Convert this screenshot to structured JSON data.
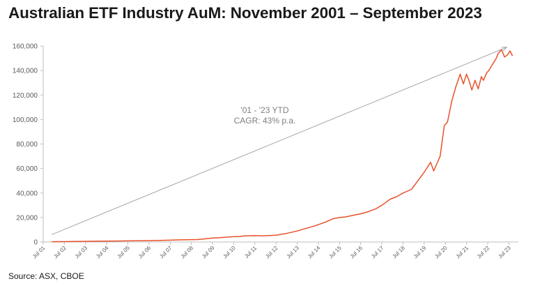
{
  "chart_data": {
    "type": "line",
    "title": "Australian ETF Industry AuM: November 2001 – September 2023",
    "source": "Source: ASX, CBOE",
    "annotation": [
      "'01 - '23 YTD",
      "CAGR: 43% p.a."
    ],
    "ylim": [
      0,
      160000
    ],
    "y_ticks": [
      "0",
      "20,000",
      "40,000",
      "60,000",
      "80,000",
      "100,000",
      "120,000",
      "140,000",
      "160,000"
    ],
    "y_tick_values": [
      0,
      20000,
      40000,
      60000,
      80000,
      100000,
      120000,
      140000,
      160000
    ],
    "x_ticks": [
      "Jul 01",
      "Jul 02",
      "Jul 03",
      "Jul 04",
      "Jul 05",
      "Jul 06",
      "Jul 07",
      "Jul 08",
      "Jul 09",
      "Jul 10",
      "Jul 11",
      "Jul 12",
      "Jul 13",
      "Jul 14",
      "Jul 15",
      "Jul 16",
      "Jul 17",
      "Jul 18",
      "Jul 19",
      "Jul 20",
      "Jul 21",
      "Jul 22",
      "Jul 23"
    ],
    "x_tick_values": [
      2001.5,
      2002.5,
      2003.5,
      2004.5,
      2005.5,
      2006.5,
      2007.5,
      2008.5,
      2009.5,
      2010.5,
      2011.5,
      2012.5,
      2013.5,
      2014.5,
      2015.5,
      2016.5,
      2017.5,
      2018.5,
      2019.5,
      2020.5,
      2021.5,
      2022.5,
      2023.5
    ],
    "xlim": [
      2001.5,
      2023.75
    ],
    "trend_arrow": {
      "from": [
        2001.9,
        6000
      ],
      "to": [
        2023.4,
        159000
      ]
    },
    "colors": {
      "series": "#e8512a",
      "arrow": "#a6a6a6",
      "axis": "#bfbfbf",
      "grid": "#e6e6e6"
    },
    "series": [
      {
        "x": [
          2001.9,
          2002.5,
          2003.0,
          2003.5,
          2004.0,
          2004.5,
          2005.0,
          2005.5,
          2006.0,
          2006.5,
          2007.0,
          2007.5,
          2007.9,
          2008.3,
          2008.8,
          2009.2,
          2009.5,
          2009.8,
          2010.2,
          2010.5,
          2010.8,
          2011.0,
          2011.5,
          2011.9,
          2012.5,
          2013.0,
          2013.5,
          2013.9,
          2014.3,
          2014.8,
          2015.2,
          2015.5,
          2015.8,
          2016.2,
          2016.5,
          2016.9,
          2017.2,
          2017.5,
          2017.9,
          2018.2,
          2018.5,
          2018.9,
          2019.2,
          2019.5,
          2019.8,
          2019.95,
          2020.1,
          2020.25,
          2020.45,
          2020.6,
          2020.8,
          2020.9,
          2021.0,
          2021.2,
          2021.35,
          2021.5,
          2021.65,
          2021.75,
          2021.9,
          2022.05,
          2022.2,
          2022.3,
          2022.45,
          2022.55,
          2022.65,
          2022.8,
          2022.9,
          2023.0,
          2023.15,
          2023.3,
          2023.45,
          2023.55,
          2023.67
        ],
        "values": [
          200,
          300,
          400,
          500,
          600,
          700,
          800,
          900,
          1000,
          1100,
          1300,
          1500,
          1700,
          1800,
          2000,
          2600,
          3200,
          3500,
          4000,
          4300,
          4500,
          5000,
          5200,
          5000,
          5500,
          7000,
          9000,
          11000,
          13000,
          16000,
          19000,
          20000,
          20500,
          22000,
          23000,
          25000,
          27000,
          30000,
          35000,
          37000,
          40000,
          43000,
          50000,
          57000,
          65000,
          58000,
          64000,
          70000,
          95000,
          98000,
          115000,
          121000,
          127000,
          137000,
          129000,
          137000,
          130000,
          124000,
          132000,
          125000,
          135000,
          132000,
          138000,
          140000,
          143000,
          147000,
          150000,
          154000,
          157000,
          151000,
          153000,
          156000,
          152000
        ]
      }
    ]
  }
}
